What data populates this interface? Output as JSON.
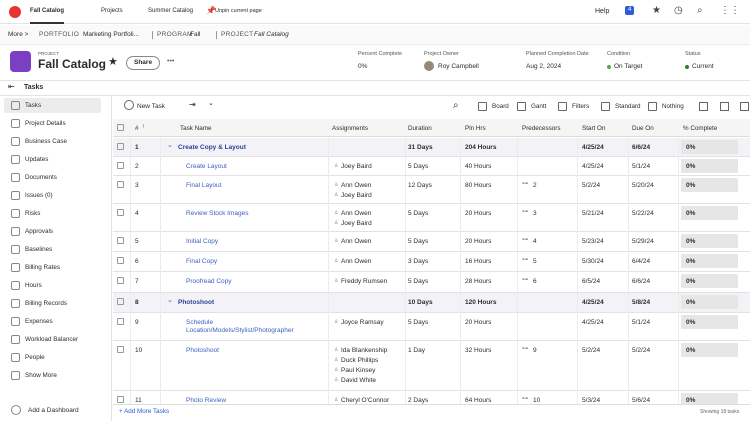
{
  "top_nav": {
    "tabs": [
      "Fall Catalog",
      "Projects",
      "Summer Catalog"
    ],
    "unpin": "Unpin current page",
    "help": "Help",
    "notifications": "4"
  },
  "breadcrumb": {
    "more": "More >",
    "items": [
      {
        "type": "PORTFOLIO",
        "name": "Marketing Portfoli..."
      },
      {
        "type": "PROGRAM",
        "name": "Fall"
      },
      {
        "type": "PROJECT",
        "name": "Fall Catalog"
      }
    ]
  },
  "header": {
    "label": "PROJECT",
    "title": "Fall Catalog",
    "share": "Share",
    "fields": [
      {
        "label": "Percent Complete",
        "value": "0%"
      },
      {
        "label": "Project Owner",
        "value": "Roy Campbell"
      },
      {
        "label": "Planned Completion Date",
        "value": "Aug 2, 2024"
      },
      {
        "label": "Condition",
        "value": "On Target"
      },
      {
        "label": "Status",
        "value": "Current"
      }
    ]
  },
  "section": "Tasks",
  "sidebar": {
    "items": [
      "Tasks",
      "Project Details",
      "Business Case",
      "Updates",
      "Documents",
      "Issues (0)",
      "Risks",
      "Approvals",
      "Baselines",
      "Billing Rates",
      "Hours",
      "Billing Records",
      "Expenses",
      "Workload Balancer",
      "People",
      "Show More"
    ],
    "add_dashboard": "Add a Dashboard"
  },
  "toolbar": {
    "new_task": "New Task",
    "board": "Board",
    "gantt": "Gantt",
    "filters": "Filters",
    "view": "Standard",
    "group": "Nothing"
  },
  "table": {
    "columns": [
      "#",
      "Task Name",
      "Assignments",
      "Duration",
      "Pln Hrs",
      "Predecessors",
      "Start On",
      "Due On",
      "% Complete"
    ],
    "rows": [
      {
        "num": 1,
        "name": "Create Copy & Layout",
        "group": true,
        "duration": "31 Days",
        "hours": "204 Hours",
        "start": "4/25/24",
        "due": "6/6/24",
        "complete": "0%"
      },
      {
        "num": 2,
        "name": "Create Layout",
        "assignments": [
          "Joey Baird"
        ],
        "duration": "5 Days",
        "hours": "40 Hours",
        "start": "4/25/24",
        "due": "5/1/24",
        "complete": "0%"
      },
      {
        "num": 3,
        "name": "Final Layout",
        "assignments": [
          "Ann Owen",
          "Joey Baird"
        ],
        "duration": "12 Days",
        "hours": "80 Hours",
        "predecessors": "2",
        "start": "5/2/24",
        "due": "5/20/24",
        "complete": "0%"
      },
      {
        "num": 4,
        "name": "Review Stock Images",
        "assignments": [
          "Ann Owen",
          "Joey Baird"
        ],
        "duration": "5 Days",
        "hours": "20 Hours",
        "predecessors": "3",
        "start": "5/21/24",
        "due": "5/22/24",
        "complete": "0%"
      },
      {
        "num": 5,
        "name": "Initial Copy",
        "assignments": [
          "Ann Owen"
        ],
        "duration": "5 Days",
        "hours": "20 Hours",
        "predecessors": "4",
        "start": "5/23/24",
        "due": "5/29/24",
        "complete": "0%"
      },
      {
        "num": 6,
        "name": "Final Copy",
        "assignments": [
          "Ann Owen"
        ],
        "duration": "3 Days",
        "hours": "16 Hours",
        "predecessors": "5",
        "start": "5/30/24",
        "due": "6/4/24",
        "complete": "0%"
      },
      {
        "num": 7,
        "name": "Proofread Copy",
        "assignments": [
          "Freddy Rumsen"
        ],
        "duration": "5 Days",
        "hours": "28 Hours",
        "predecessors": "6",
        "start": "6/5/24",
        "due": "6/6/24",
        "complete": "0%"
      },
      {
        "num": 8,
        "name": "Photoshoot",
        "group": true,
        "duration": "10 Days",
        "hours": "120 Hours",
        "start": "4/25/24",
        "due": "5/8/24",
        "complete": "0%"
      },
      {
        "num": 9,
        "name": "Schedule Location/Models/Stylist/Photographer",
        "assignments": [
          "Joyce Ramsay"
        ],
        "duration": "5 Days",
        "hours": "20 Hours",
        "start": "4/25/24",
        "due": "5/1/24",
        "complete": "0%"
      },
      {
        "num": 10,
        "name": "Photoshoot",
        "assignments": [
          "Ida Blankenship",
          "Duck Phillips",
          "Paul Kinsey",
          "David White"
        ],
        "duration": "1 Day",
        "hours": "32 Hours",
        "predecessors": "9",
        "start": "5/2/24",
        "due": "5/2/24",
        "complete": "0%"
      },
      {
        "num": 11,
        "name": "Photo Review",
        "assignments": [
          "Cheryl O'Connor"
        ],
        "duration": "2 Days",
        "hours": "64 Hours",
        "predecessors": "10",
        "start": "5/3/24",
        "due": "5/6/24",
        "complete": "0%"
      }
    ],
    "footer": {
      "add": "+ Add More Tasks",
      "count": "Showing 18 tasks"
    }
  }
}
